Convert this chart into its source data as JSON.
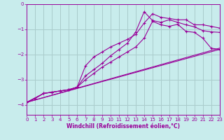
{
  "title": "",
  "xlabel": "Windchill (Refroidissement éolien,°C)",
  "bg_color": "#c8ecec",
  "line_color": "#990099",
  "grid_color": "#aacccc",
  "xlim": [
    0,
    23
  ],
  "ylim": [
    -4.4,
    0
  ],
  "yticks": [
    0,
    -1,
    -2,
    -3,
    -4
  ],
  "xticks": [
    0,
    1,
    2,
    3,
    4,
    5,
    6,
    7,
    8,
    9,
    10,
    11,
    12,
    13,
    14,
    15,
    16,
    17,
    18,
    19,
    20,
    21,
    22,
    23
  ],
  "line1_x": [
    0,
    1,
    2,
    3,
    4,
    5,
    6,
    7,
    8,
    9,
    10,
    11,
    12,
    13,
    14,
    15,
    16,
    17,
    18,
    19,
    20,
    21,
    22,
    23
  ],
  "line1_y": [
    -3.9,
    -3.75,
    -3.55,
    -3.5,
    -3.45,
    -3.4,
    -3.3,
    -2.85,
    -2.6,
    -2.35,
    -2.05,
    -1.8,
    -1.55,
    -1.1,
    -0.3,
    -0.65,
    -0.72,
    -0.62,
    -0.72,
    -0.82,
    -0.9,
    -1.05,
    -1.1,
    -1.12
  ],
  "line2_x": [
    0,
    2,
    3,
    4,
    5,
    6,
    7,
    8,
    9,
    10,
    11,
    12,
    13,
    14,
    15,
    16,
    17,
    18,
    19,
    20,
    21,
    22,
    23
  ],
  "line2_y": [
    -3.9,
    -3.55,
    -3.5,
    -3.45,
    -3.4,
    -3.3,
    -2.45,
    -2.1,
    -1.9,
    -1.7,
    -1.55,
    -1.4,
    -1.2,
    -0.75,
    -0.38,
    -0.52,
    -0.57,
    -0.62,
    -0.62,
    -0.82,
    -0.82,
    -0.88,
    -0.95
  ],
  "line3_x": [
    0,
    23
  ],
  "line3_y": [
    -3.9,
    -1.75
  ],
  "line4_x": [
    0,
    23
  ],
  "line4_y": [
    -3.9,
    -1.8
  ],
  "line5_x": [
    0,
    2,
    3,
    4,
    5,
    6,
    7,
    8,
    9,
    10,
    11,
    12,
    13,
    14,
    15,
    16,
    17,
    18,
    19,
    20,
    21,
    22,
    23
  ],
  "line5_y": [
    -3.9,
    -3.55,
    -3.5,
    -3.45,
    -3.4,
    -3.3,
    -3.0,
    -2.75,
    -2.5,
    -2.3,
    -2.1,
    -1.9,
    -1.7,
    -1.35,
    -0.68,
    -0.82,
    -0.88,
    -0.8,
    -1.08,
    -1.12,
    -1.35,
    -1.75,
    -1.8
  ]
}
